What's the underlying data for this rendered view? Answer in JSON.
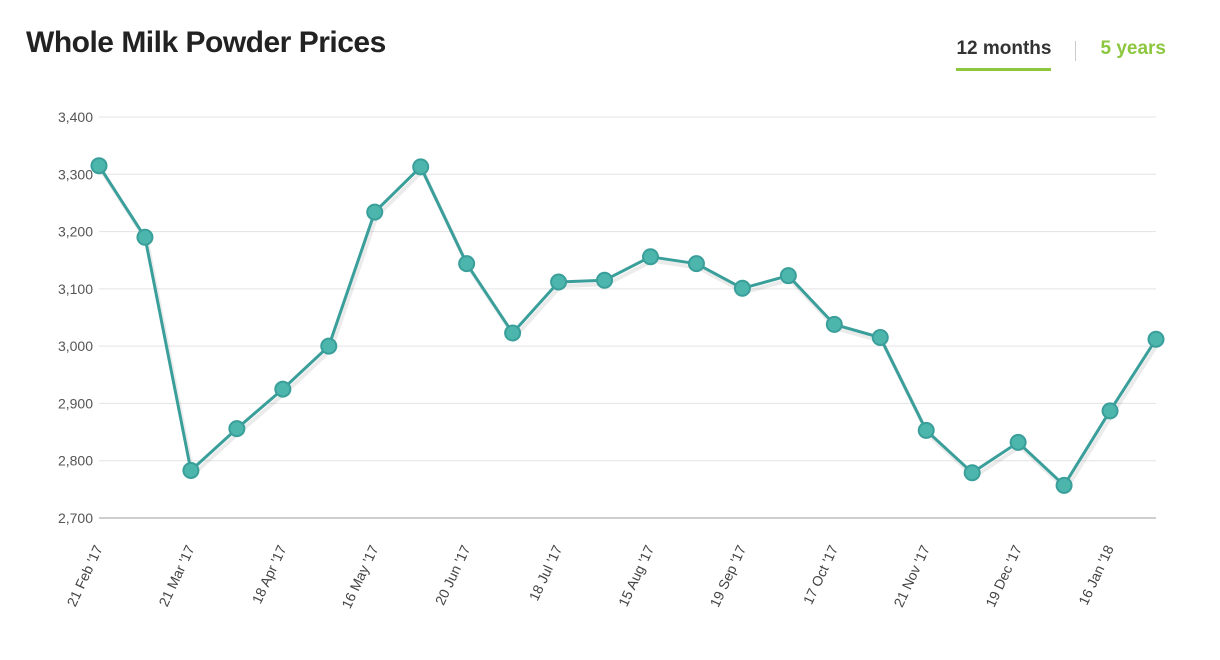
{
  "title": "Whole Milk Powder Prices",
  "tabs": [
    {
      "label": "12 months",
      "active": true
    },
    {
      "label": "5 years",
      "active": false
    }
  ],
  "colors": {
    "line": "#3a9f9a",
    "marker": "#4db6ac",
    "accent": "#8dc63f",
    "grid": "#e3e3e3"
  },
  "chart_data": {
    "type": "line",
    "title": "Whole Milk Powder Prices",
    "xlabel": "",
    "ylabel": "",
    "ylim": [
      2700,
      3400
    ],
    "yticks": [
      "3,400",
      "3,300",
      "3,200",
      "3,100",
      "3,000",
      "2,900",
      "2,800",
      "2,700"
    ],
    "yticks_values": [
      3400,
      3300,
      3200,
      3100,
      3000,
      2900,
      2800,
      2700
    ],
    "xtick_labels": [
      {
        "index": 0,
        "label": "21 Feb '17"
      },
      {
        "index": 2,
        "label": "21 Mar '17"
      },
      {
        "index": 4,
        "label": "18 Apr '17"
      },
      {
        "index": 6,
        "label": "16 May '17"
      },
      {
        "index": 8,
        "label": "20 Jun '17"
      },
      {
        "index": 10,
        "label": "18 Jul '17"
      },
      {
        "index": 12,
        "label": "15 Aug '17"
      },
      {
        "index": 14,
        "label": "19 Sep '17"
      },
      {
        "index": 16,
        "label": "17 Oct '17"
      },
      {
        "index": 18,
        "label": "21 Nov '17"
      },
      {
        "index": 20,
        "label": "19 Dec '17"
      },
      {
        "index": 22,
        "label": "16 Jan '18"
      }
    ],
    "grid": true,
    "legend": "none",
    "series": [
      {
        "values": [
          3315,
          3190,
          2783,
          2856,
          2925,
          3000,
          3234,
          3313,
          3144,
          3023,
          3112,
          3115,
          3156,
          3144,
          3101,
          3123,
          3038,
          3015,
          2853,
          2779,
          2832,
          2757,
          2887,
          3012
        ]
      }
    ]
  }
}
